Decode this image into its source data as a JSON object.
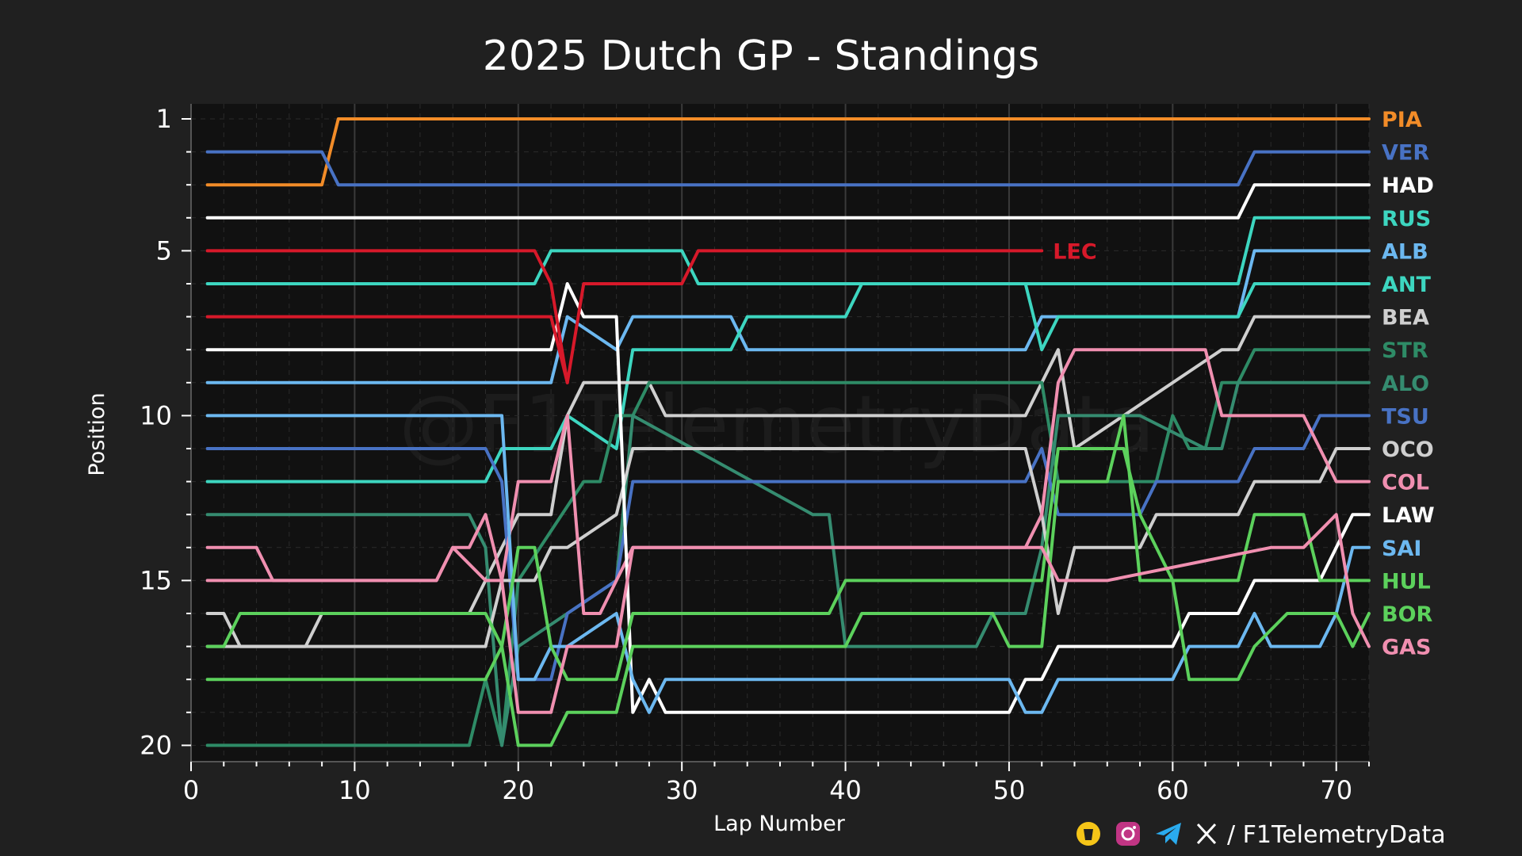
{
  "footer": {
    "handle": "/ F1TelemetryData",
    "icons": [
      "buymeacoffee-icon",
      "instagram-icon",
      "telegram-icon",
      "x-icon"
    ]
  },
  "watermark": "@F1TelemetryData",
  "chart_data": {
    "type": "line",
    "title": "2025 Dutch GP - Standings",
    "xlabel": "Lap Number",
    "ylabel": "Position",
    "xlim": [
      0,
      72
    ],
    "ylim": [
      20,
      1
    ],
    "y_inverted": true,
    "xticks": [
      0,
      10,
      20,
      30,
      40,
      50,
      60,
      70
    ],
    "yticks": [
      1,
      5,
      10,
      15,
      20
    ],
    "grid": true,
    "legend": "right side, label at final position of each driver",
    "background": "#111111",
    "series": [
      {
        "name": "PIA",
        "color": "#F28C28",
        "x": [
          1,
          8,
          9,
          72
        ],
        "y": [
          3,
          3,
          1,
          1
        ]
      },
      {
        "name": "VER",
        "color": "#4872C4",
        "x": [
          1,
          8,
          9,
          64,
          65,
          72
        ],
        "y": [
          2,
          2,
          3,
          3,
          2,
          2
        ]
      },
      {
        "name": "HAD",
        "color": "#FFFFFF",
        "x": [
          1,
          64,
          65,
          72
        ],
        "y": [
          4,
          4,
          3,
          3
        ]
      },
      {
        "name": "RUS",
        "color": "#3DD6C0",
        "x": [
          1,
          21,
          22,
          30,
          31,
          64,
          65,
          72
        ],
        "y": [
          6,
          6,
          5,
          5,
          6,
          6,
          4,
          4
        ]
      },
      {
        "name": "ALB",
        "color": "#6CB8F0",
        "x": [
          1,
          22,
          23,
          26,
          27,
          33,
          34,
          51,
          52,
          64,
          65,
          72
        ],
        "y": [
          9,
          9,
          7,
          8,
          7,
          7,
          8,
          8,
          7,
          7,
          5,
          5
        ]
      },
      {
        "name": "ANT",
        "color": "#3DD6C0",
        "x": [
          1,
          18,
          19,
          22,
          23,
          26,
          27,
          33,
          34,
          40,
          41,
          51,
          52,
          53,
          64,
          65,
          72
        ],
        "y": [
          12,
          12,
          11,
          11,
          10,
          11,
          8,
          8,
          7,
          7,
          6,
          6,
          8,
          7,
          7,
          6,
          6
        ]
      },
      {
        "name": "BEA",
        "color": "#CFCFCF",
        "x": [
          1,
          7,
          8,
          17,
          18,
          20,
          21,
          22,
          23,
          24,
          28,
          29,
          51,
          52,
          53,
          54,
          63,
          64,
          65,
          72
        ],
        "y": [
          17,
          17,
          16,
          16,
          15,
          13,
          13,
          13,
          10,
          9,
          9,
          10,
          10,
          9,
          8,
          11,
          8,
          8,
          7,
          7
        ]
      },
      {
        "name": "STR",
        "color": "#2E8B66",
        "x": [
          1,
          7,
          8,
          17,
          18,
          19,
          20,
          24,
          25,
          26,
          27,
          28,
          52,
          53,
          59,
          60,
          61,
          62,
          63,
          64,
          65,
          72
        ],
        "y": [
          20,
          20,
          20,
          20,
          18,
          20,
          15,
          12,
          12,
          10,
          10,
          9,
          9,
          12,
          12,
          10,
          11,
          11,
          9,
          9,
          8,
          8
        ]
      },
      {
        "name": "ALO",
        "color": "#358C70",
        "x": [
          1,
          17,
          18,
          19,
          20,
          26,
          27,
          38,
          39,
          40,
          48,
          49,
          51,
          52,
          53,
          57,
          58,
          62,
          63,
          64,
          65,
          72
        ],
        "y": [
          13,
          13,
          14,
          20,
          17,
          15,
          10,
          13,
          13,
          17,
          17,
          16,
          16,
          14,
          10,
          10,
          10,
          11,
          11,
          9,
          9,
          9
        ]
      },
      {
        "name": "TSU",
        "color": "#4872C4",
        "x": [
          1,
          18,
          19,
          20,
          22,
          23,
          26,
          27,
          51,
          52,
          53,
          58,
          59,
          64,
          65,
          68,
          69,
          72
        ],
        "y": [
          11,
          11,
          12,
          18,
          18,
          16,
          15,
          12,
          12,
          11,
          13,
          13,
          12,
          12,
          11,
          11,
          10,
          10
        ]
      },
      {
        "name": "OCO",
        "color": "#CFCFCF",
        "x": [
          1,
          2,
          3,
          18,
          19,
          21,
          22,
          23,
          26,
          27,
          51,
          52,
          53,
          54,
          58,
          59,
          64,
          65,
          69,
          70,
          72
        ],
        "y": [
          16,
          16,
          17,
          17,
          15,
          15,
          14,
          14,
          13,
          11,
          11,
          13,
          16,
          14,
          14,
          13,
          13,
          12,
          12,
          11,
          11
        ]
      },
      {
        "name": "COL",
        "color": "#F08FB0",
        "x": [
          1,
          15,
          16,
          17,
          18,
          19,
          20,
          21,
          22,
          23,
          24,
          25,
          26,
          27,
          51,
          52,
          53,
          54,
          62,
          63,
          67,
          68,
          70,
          71,
          72
        ],
        "y": [
          15,
          15,
          14,
          14,
          13,
          15,
          12,
          12,
          12,
          10,
          16,
          16,
          15,
          14,
          14,
          13,
          9,
          8,
          8,
          10,
          10,
          10,
          12,
          12,
          12
        ]
      },
      {
        "name": "LAW",
        "color": "#FFFFFF",
        "x": [
          1,
          22,
          23,
          24,
          26,
          27,
          28,
          29,
          50,
          51,
          52,
          53,
          60,
          61,
          64,
          65,
          69,
          70,
          71,
          72
        ],
        "y": [
          8,
          8,
          6,
          7,
          7,
          19,
          18,
          19,
          19,
          18,
          18,
          17,
          17,
          16,
          16,
          15,
          15,
          14,
          13,
          13
        ]
      },
      {
        "name": "SAI",
        "color": "#6CB8F0",
        "x": [
          1,
          19,
          20,
          21,
          22,
          23,
          26,
          27,
          28,
          29,
          50,
          51,
          52,
          53,
          60,
          61,
          64,
          65,
          66,
          69,
          70,
          71,
          72
        ],
        "y": [
          10,
          10,
          18,
          18,
          17,
          17,
          16,
          18,
          19,
          18,
          18,
          19,
          19,
          18,
          18,
          17,
          17,
          16,
          17,
          17,
          16,
          14,
          14
        ]
      },
      {
        "name": "HUL",
        "color": "#5CD15C",
        "x": [
          1,
          17,
          18,
          19,
          20,
          21,
          22,
          23,
          24,
          26,
          27,
          39,
          40,
          52,
          53,
          57,
          58,
          60,
          61,
          64,
          65,
          68,
          69,
          72
        ],
        "y": [
          18,
          18,
          18,
          17,
          14,
          14,
          17,
          18,
          18,
          18,
          16,
          16,
          15,
          15,
          11,
          11,
          13,
          15,
          15,
          15,
          13,
          13,
          15,
          15
        ]
      },
      {
        "name": "BOR",
        "color": "#5CD15C",
        "x": [
          1,
          2,
          3,
          7,
          8,
          18,
          19,
          20,
          22,
          23,
          26,
          27,
          40,
          41,
          49,
          50,
          51,
          52,
          53,
          56,
          57,
          58,
          60,
          61,
          64,
          65,
          67,
          68,
          70,
          71,
          72
        ],
        "y": [
          17,
          17,
          16,
          16,
          16,
          16,
          17,
          20,
          20,
          19,
          19,
          17,
          17,
          16,
          16,
          17,
          17,
          17,
          12,
          12,
          10,
          15,
          15,
          18,
          18,
          17,
          16,
          16,
          16,
          17,
          16
        ]
      },
      {
        "name": "GAS",
        "color": "#F08FB0",
        "x": [
          1,
          4,
          5,
          15,
          16,
          18,
          19,
          20,
          22,
          23,
          26,
          27,
          52,
          53,
          55,
          56,
          66,
          67,
          68,
          70,
          71,
          72
        ],
        "y": [
          14,
          14,
          15,
          15,
          14,
          15,
          15,
          19,
          19,
          17,
          17,
          14,
          14,
          15,
          15,
          15,
          14,
          14,
          14,
          13,
          16,
          17
        ]
      },
      {
        "name": "LEC",
        "color": "#D7192A",
        "x": [
          1,
          21,
          22,
          23,
          24,
          30,
          31,
          52
        ],
        "y": [
          5,
          5,
          6,
          9,
          6,
          6,
          5,
          5
        ],
        "dnf_label": "LEC"
      },
      {
        "name": "",
        "color": "#D7192A",
        "x": [
          1,
          22,
          23
        ],
        "y": [
          7,
          7,
          9
        ]
      }
    ]
  }
}
